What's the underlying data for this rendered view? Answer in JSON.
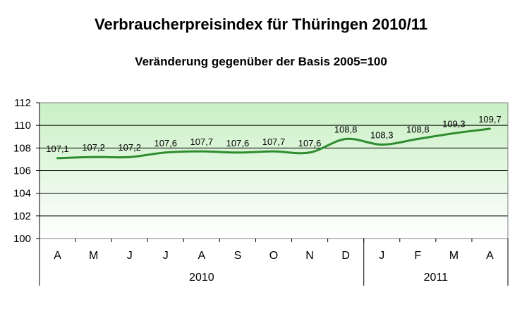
{
  "chart_data": {
    "type": "line",
    "title": "Verbraucherpreisindex für Thüringen 2010/11",
    "subtitle": "Veränderung gegenüber der Basis 2005=100",
    "categories": [
      "A",
      "M",
      "J",
      "J",
      "A",
      "S",
      "O",
      "N",
      "D",
      "J",
      "F",
      "M",
      "A"
    ],
    "values": [
      107.1,
      107.2,
      107.2,
      107.6,
      107.7,
      107.6,
      107.7,
      107.6,
      108.8,
      108.3,
      108.8,
      109.3,
      109.7
    ],
    "data_labels": [
      "107,1",
      "107,2",
      "107,2",
      "107,6",
      "107,7",
      "107,6",
      "107,7",
      "107,6",
      "108,8",
      "108,3",
      "108,8",
      "109,3",
      "109,7"
    ],
    "year_groups": [
      {
        "label": "2010",
        "count": 9
      },
      {
        "label": "2011",
        "count": 4
      }
    ],
    "ylim": [
      100,
      112
    ],
    "yticks": [
      100,
      102,
      104,
      106,
      108,
      110,
      112
    ],
    "grid": true,
    "legend": "none",
    "colors": {
      "line": "#2e8b2e",
      "background_top": "#c9f0c4",
      "background_bottom": "#ffffff",
      "gridline": "#000000"
    }
  }
}
